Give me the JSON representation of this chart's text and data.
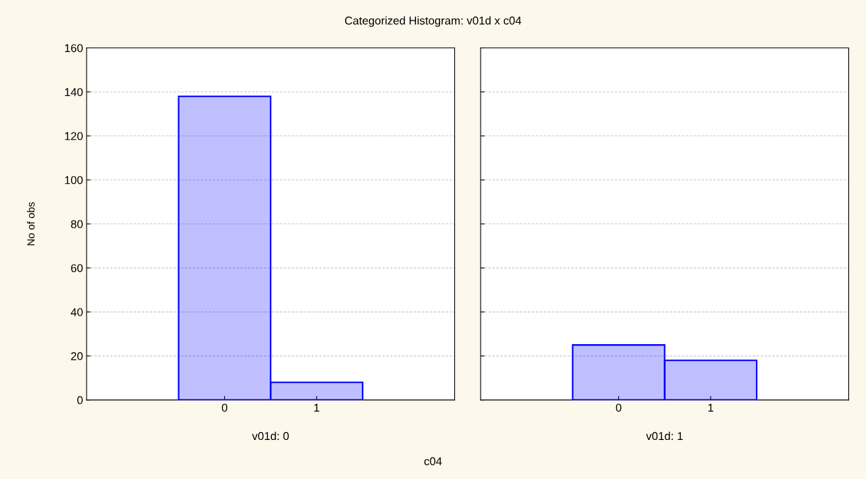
{
  "chart_data": [
    {
      "type": "histogram",
      "title": "Categorized Histogram: v01d x c04",
      "xlabel": "v01d: 0",
      "ylabel": "No of obs",
      "annotations": [
        "c04"
      ],
      "bins": [
        -0.5,
        0.5,
        1.5
      ],
      "values": [
        138,
        8
      ],
      "color": "#0000ff",
      "xlim": [
        -1.5,
        2.5
      ],
      "xticks": [
        0,
        1
      ],
      "ylim": [
        0,
        160
      ],
      "yticks": [
        0,
        20,
        40,
        60,
        80,
        100,
        120,
        140,
        160
      ],
      "grid": "y"
    },
    {
      "type": "histogram",
      "xlabel": "v01d: 1",
      "bins": [
        -0.5,
        0.5,
        1.5
      ],
      "values": [
        25,
        18
      ],
      "color": "#0000ff",
      "xlim": [
        -1.5,
        2.5
      ],
      "xticks": [
        0,
        1
      ],
      "ylim": [
        0,
        160
      ],
      "yticks": [
        0,
        20,
        40,
        60,
        80,
        100,
        120,
        140,
        160
      ],
      "grid": "y",
      "tick_labels": "x"
    }
  ]
}
